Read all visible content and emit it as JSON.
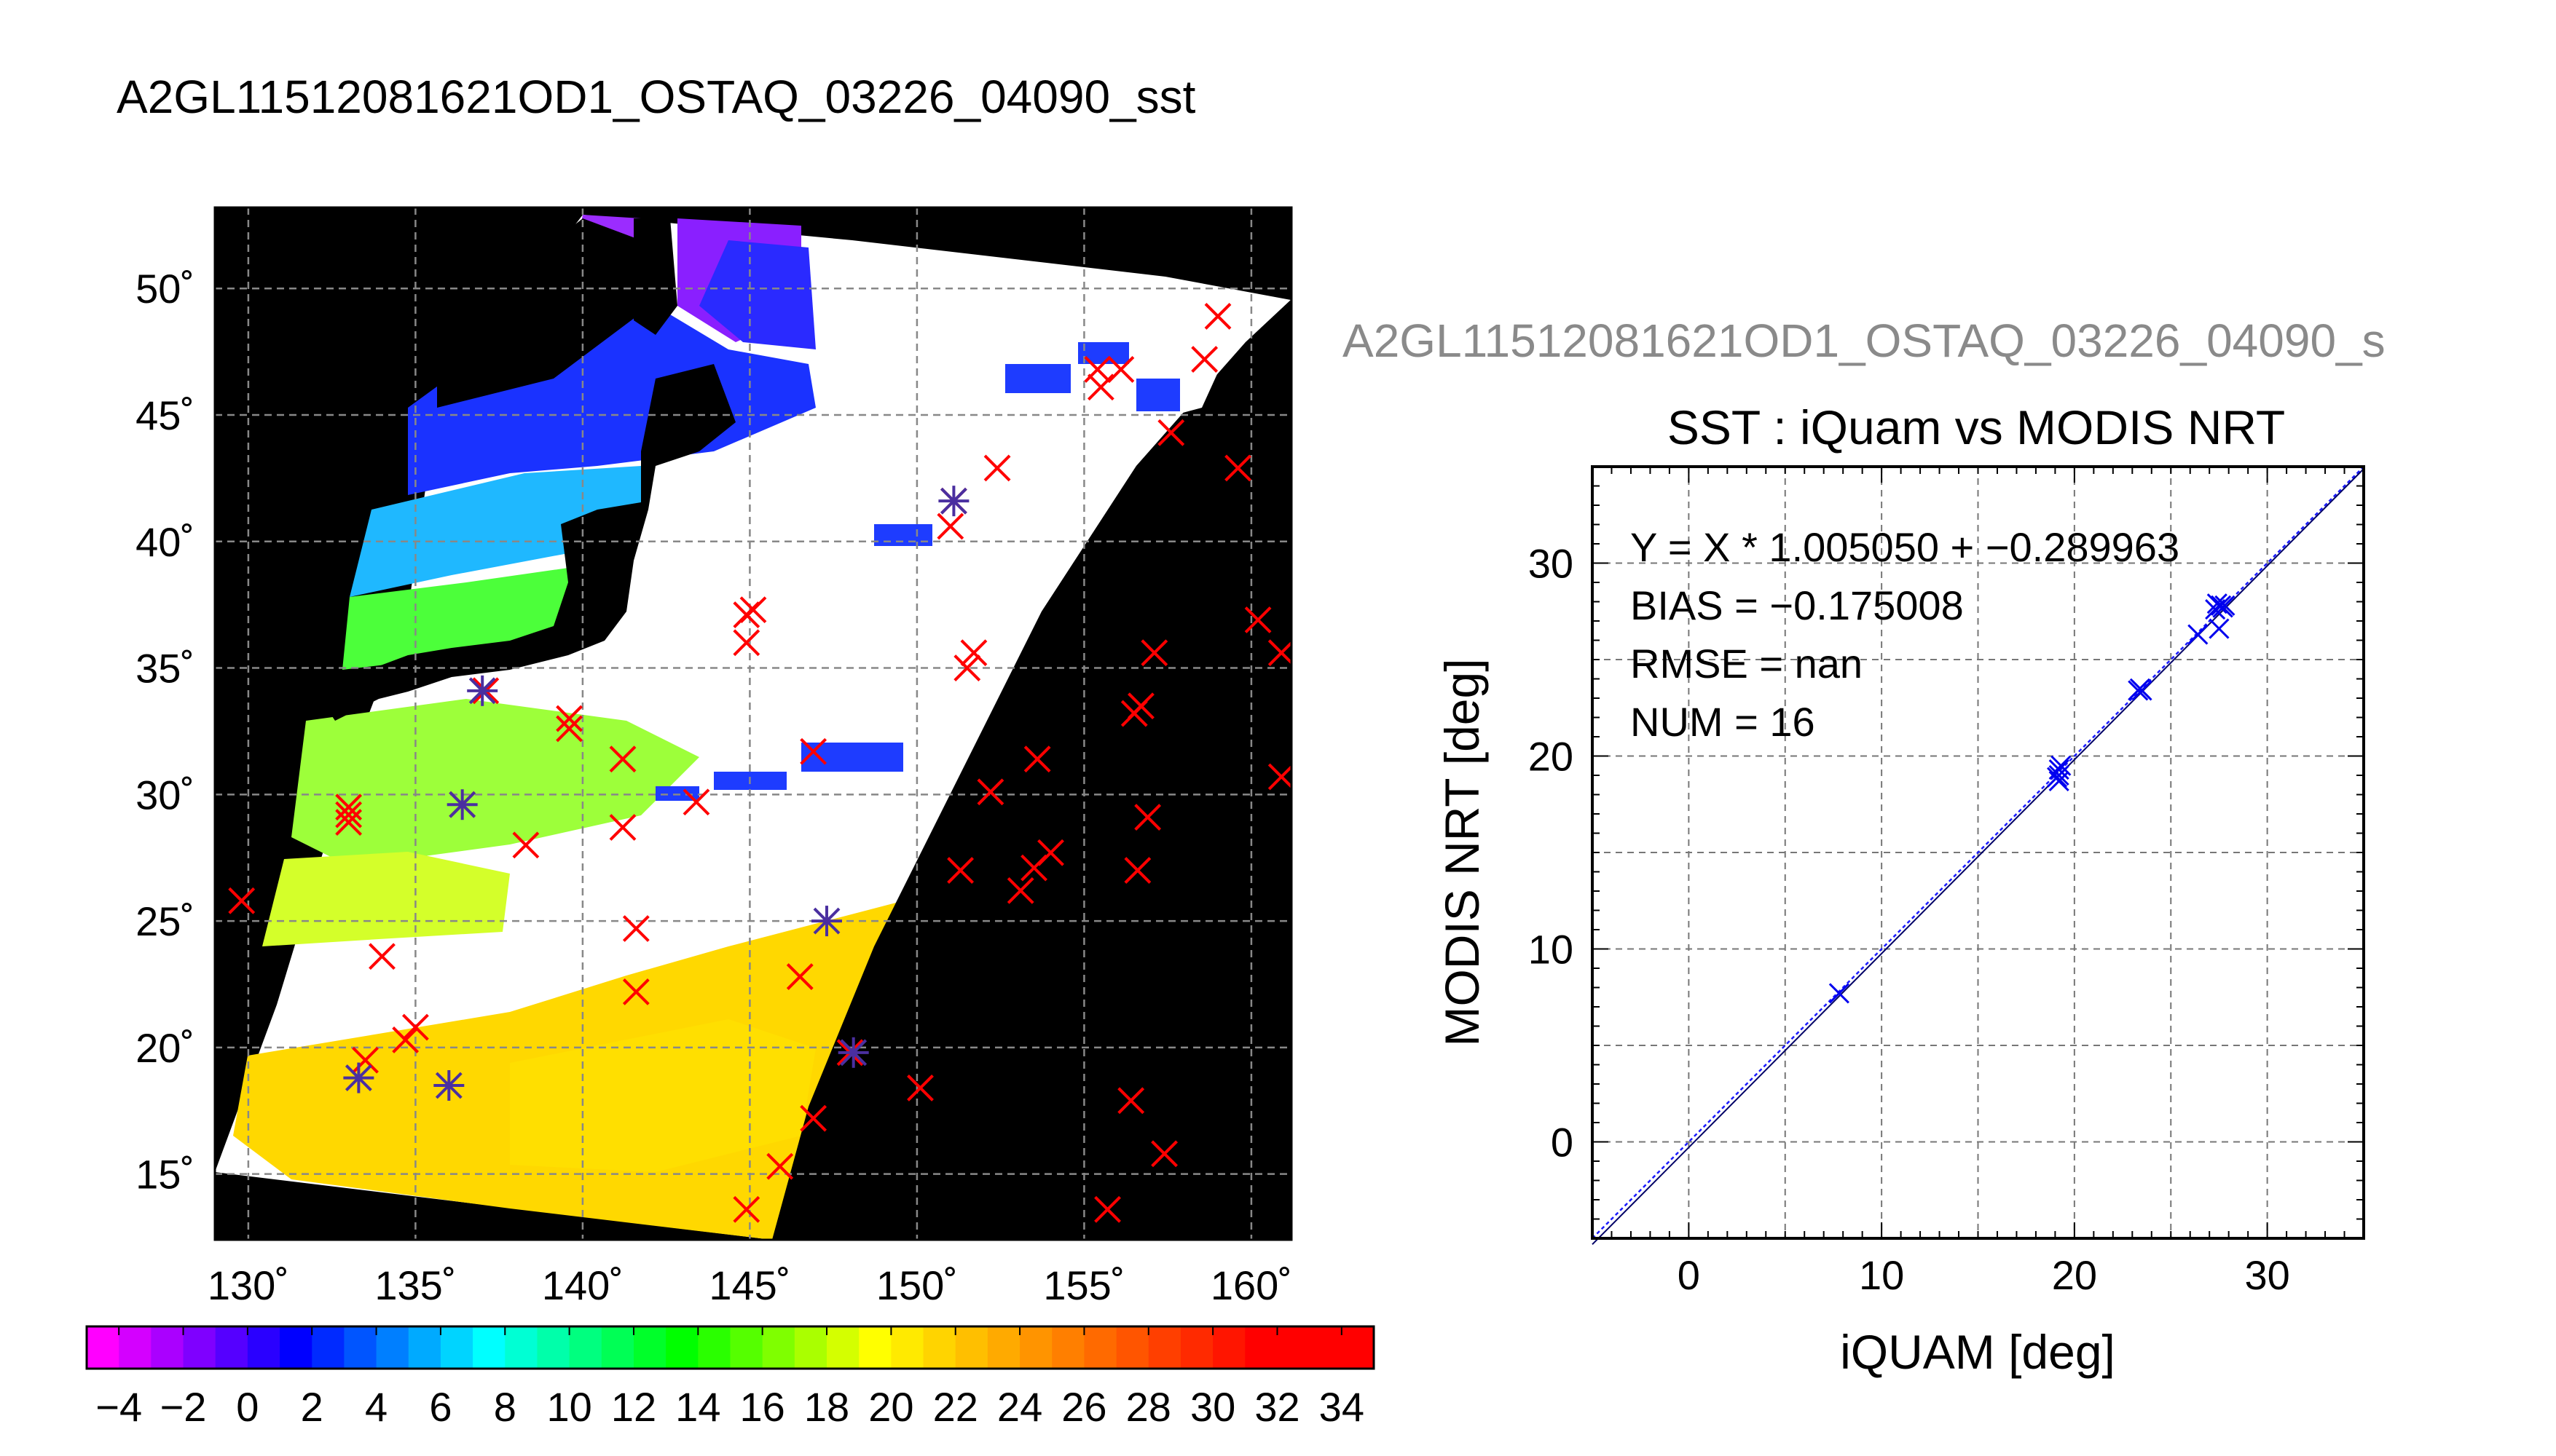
{
  "main_title": "A2GL11512081621OD1_OSTAQ_03226_04090_sst",
  "right_overlay_title": "A2GL11512081621OD1_OSTAQ_03226_04090_s",
  "chart_data": [
    {
      "type": "scatter",
      "kind": "map",
      "x_ticks": [
        "130˚",
        "135˚",
        "140˚",
        "145˚",
        "150˚",
        "155˚",
        "160˚"
      ],
      "y_ticks": [
        "15˚",
        "20˚",
        "25˚",
        "30˚",
        "35˚",
        "40˚",
        "45˚",
        "50˚"
      ],
      "xlim": [
        129,
        161.2
      ],
      "ylim": [
        12.4,
        53.2
      ],
      "grid": true,
      "background": "#000000",
      "series": [
        {
          "marker": "x",
          "color": "#ff0000",
          "points": [
            [
              129.8,
              25.8
            ],
            [
              133,
              29.2
            ],
            [
              133,
              28.9
            ],
            [
              133,
              29.5
            ],
            [
              134,
              23.6
            ],
            [
              133.5,
              19.5
            ],
            [
              134.7,
              20.3
            ],
            [
              135,
              20.8
            ],
            [
              136.4,
              29.6
            ],
            [
              137.1,
              34.1
            ],
            [
              138.3,
              28
            ],
            [
              139.6,
              33
            ],
            [
              139.6,
              32.6
            ],
            [
              141.2,
              31.4
            ],
            [
              141.2,
              28.7
            ],
            [
              141.6,
              24.7
            ],
            [
              141.6,
              22.2
            ],
            [
              143.4,
              29.7
            ],
            [
              144.9,
              37.1
            ],
            [
              145.1,
              37.3
            ],
            [
              144.9,
              36
            ],
            [
              144.9,
              13.6
            ],
            [
              145.9,
              15.3
            ],
            [
              146.5,
              22.8
            ],
            [
              146.9,
              17.2
            ],
            [
              146.9,
              31.7
            ],
            [
              148,
              19.8
            ],
            [
              150.1,
              18.4
            ],
            [
              151,
              40.6
            ],
            [
              151.1,
              41.6
            ],
            [
              151.3,
              27
            ],
            [
              151.5,
              35
            ],
            [
              151.7,
              35.6
            ],
            [
              152.2,
              30.1
            ],
            [
              152.4,
              42.9
            ],
            [
              153.1,
              26.2
            ],
            [
              153.5,
              27.1
            ],
            [
              153.6,
              31.4
            ],
            [
              154,
              27.7
            ],
            [
              155.4,
              46.8
            ],
            [
              155.5,
              46.1
            ],
            [
              155.7,
              13.6
            ],
            [
              156.1,
              46.8
            ],
            [
              156.4,
              17.9
            ],
            [
              156.6,
              27
            ],
            [
              156.5,
              33.2
            ],
            [
              156.7,
              33.5
            ],
            [
              156.9,
              29.1
            ],
            [
              157.1,
              35.6
            ],
            [
              157.4,
              15.8
            ],
            [
              157.6,
              44.3
            ],
            [
              158.6,
              47.2
            ],
            [
              159,
              48.9
            ],
            [
              159.6,
              42.9
            ],
            [
              160.2,
              36.9
            ],
            [
              160.9,
              35.6
            ],
            [
              160.9,
              30.7
            ]
          ]
        },
        {
          "marker": "asterisk",
          "color": "#4a2fa0",
          "points": [
            [
              133.3,
              18.8
            ],
            [
              136,
              18.5
            ],
            [
              136.4,
              29.6
            ],
            [
              137,
              34.1
            ],
            [
              147.3,
              25
            ],
            [
              148.1,
              19.8
            ],
            [
              151.1,
              41.6
            ]
          ]
        }
      ]
    },
    {
      "type": "scatter",
      "title": "SST : iQuam vs MODIS NRT",
      "xlabel": "iQUAM [deg]",
      "ylabel": "MODIS NRT [deg]",
      "xlim": [
        -5,
        35
      ],
      "ylim": [
        -5,
        35
      ],
      "x_ticks": [
        "0",
        "10",
        "20",
        "30"
      ],
      "y_ticks": [
        "0",
        "10",
        "20",
        "30"
      ],
      "grid": true,
      "annotations": [
        "Y = X * 1.005050 + −0.289963",
        "BIAS = −0.175008",
        "RMSE = nan",
        "NUM = 16"
      ],
      "fit": {
        "slope": 1.00505,
        "intercept": -0.289963
      },
      "marker_color": "#0000ee",
      "points": [
        [
          7.8,
          7.7
        ],
        [
          19.1,
          18.9
        ],
        [
          19.2,
          19.3
        ],
        [
          19.2,
          18.7
        ],
        [
          19.3,
          19.5
        ],
        [
          23.3,
          23.4
        ],
        [
          23.4,
          23.5
        ],
        [
          26.4,
          26.3
        ],
        [
          27.3,
          27.6
        ],
        [
          27.4,
          27.9
        ],
        [
          27.5,
          26.6
        ],
        [
          27.6,
          27.8
        ],
        [
          27.7,
          27.7
        ],
        [
          27.8,
          27.8
        ],
        [
          19.2,
          19
        ],
        [
          23.5,
          23.4
        ]
      ]
    },
    {
      "type": "heatmap",
      "kind": "colorbar",
      "vmin": -5,
      "vmax": 35,
      "tick_labels": [
        "−4",
        "−2",
        "0",
        "2",
        "4",
        "6",
        "8",
        "10",
        "12",
        "14",
        "16",
        "18",
        "20",
        "22",
        "24",
        "26",
        "28",
        "30",
        "32",
        "34"
      ],
      "colors": [
        "#ff00ff",
        "#d400ff",
        "#aa00ff",
        "#7f00ff",
        "#5500ff",
        "#2a00ff",
        "#0000ff",
        "#002aff",
        "#0055ff",
        "#007fff",
        "#00aaff",
        "#00d4ff",
        "#00ffff",
        "#00ffd4",
        "#00ffaa",
        "#00ff7f",
        "#00ff55",
        "#00ff2a",
        "#00ff00",
        "#2aff00",
        "#55ff00",
        "#7fff00",
        "#aaff00",
        "#d4ff00",
        "#ffff00",
        "#ffea00",
        "#ffd400",
        "#ffbf00",
        "#ffaa00",
        "#ff9400",
        "#ff7f00",
        "#ff6a00",
        "#ff5500",
        "#ff3f00",
        "#ff2a00",
        "#ff1500",
        "#ff0000",
        "#ff0000",
        "#ff0000",
        "#ff0000"
      ]
    }
  ]
}
